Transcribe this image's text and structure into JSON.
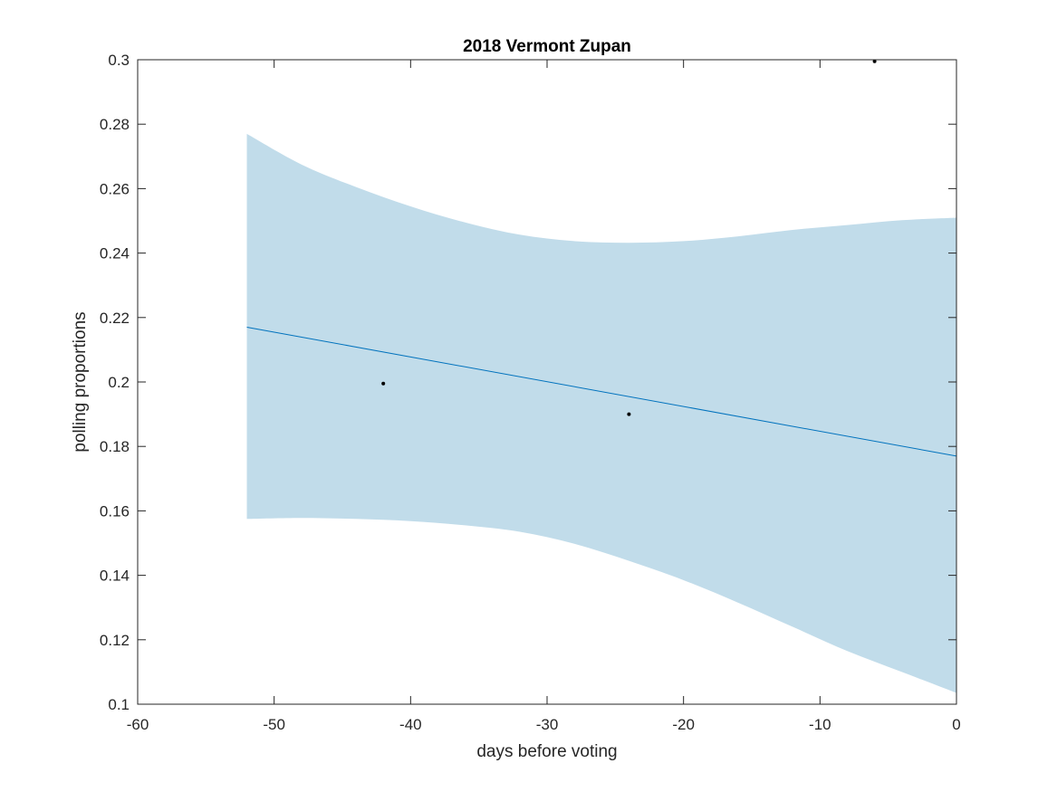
{
  "chart_data": {
    "type": "line",
    "title": "2018 Vermont Zupan",
    "xlabel": "days before voting",
    "ylabel": "polling proportions",
    "xlim": [
      -60,
      0
    ],
    "ylim": [
      0.1,
      0.3
    ],
    "xticks": [
      -60,
      -50,
      -40,
      -30,
      -20,
      -10,
      0
    ],
    "yticks": [
      0.1,
      0.12,
      0.14,
      0.16,
      0.18,
      0.2,
      0.22,
      0.24,
      0.26,
      0.28,
      0.3
    ],
    "xtick_labels": [
      "-60",
      "-50",
      "-40",
      "-30",
      "-20",
      "-10",
      "0"
    ],
    "ytick_labels": [
      "0.1",
      "0.12",
      "0.14",
      "0.16",
      "0.18",
      "0.2",
      "0.22",
      "0.24",
      "0.26",
      "0.28",
      "0.3"
    ],
    "grid": false,
    "fit_line": {
      "x": [
        -52,
        0
      ],
      "y": [
        0.217,
        0.177
      ],
      "color": "#0072BD"
    },
    "confidence_band": {
      "x": [
        -52,
        -48,
        -44,
        -40,
        -36,
        -32,
        -28,
        -24,
        -20,
        -16,
        -12,
        -8,
        -4,
        0
      ],
      "upper": [
        0.277,
        0.2675,
        0.2605,
        0.2545,
        0.2495,
        0.2457,
        0.2437,
        0.2432,
        0.2437,
        0.2452,
        0.2472,
        0.2487,
        0.2502,
        0.251
      ],
      "lower": [
        0.1575,
        0.1578,
        0.1575,
        0.1568,
        0.1555,
        0.1535,
        0.1498,
        0.1445,
        0.1385,
        0.1315,
        0.124,
        0.1165,
        0.11,
        0.1035
      ],
      "color": "#c1dcea"
    },
    "points": [
      {
        "x": -42,
        "y": 0.1995
      },
      {
        "x": -24,
        "y": 0.19
      },
      {
        "x": -6,
        "y": 0.2995
      }
    ],
    "point_color": "#000000",
    "axis_color": "#262626"
  }
}
